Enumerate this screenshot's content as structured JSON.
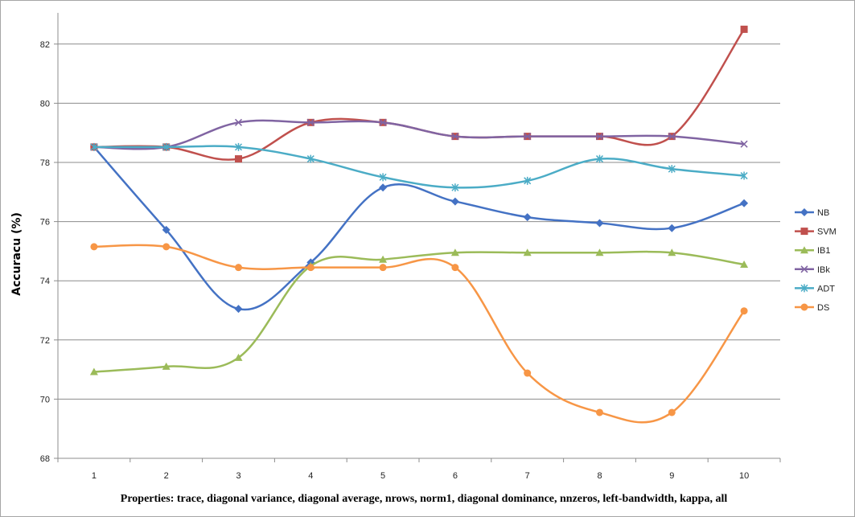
{
  "chart_data": {
    "type": "line",
    "title": "",
    "xlabel": "Properties: trace, diagonal variance, diagonal average, nrows, norm1, diagonal dominance, nnzeros, left-bandwidth, kappa, all",
    "ylabel": "Accuracu (%)",
    "categories": [
      "1",
      "2",
      "3",
      "4",
      "5",
      "6",
      "7",
      "8",
      "9",
      "10"
    ],
    "ylim": [
      68,
      83
    ],
    "yticks": [
      68,
      70,
      72,
      74,
      76,
      78,
      80,
      82
    ],
    "grid": "horizontal",
    "legend_position": "right",
    "series": [
      {
        "name": "NB",
        "color": "#4472c4",
        "marker": "diamond",
        "values": [
          78.52,
          75.72,
          73.05,
          74.62,
          77.15,
          76.68,
          76.15,
          75.95,
          75.78,
          76.62
        ]
      },
      {
        "name": "SVM",
        "color": "#c0504d",
        "marker": "square",
        "values": [
          78.52,
          78.52,
          78.12,
          79.35,
          79.35,
          78.88,
          78.88,
          78.88,
          78.88,
          82.5
        ]
      },
      {
        "name": "IB1",
        "color": "#9bbb59",
        "marker": "triangle",
        "values": [
          70.92,
          71.1,
          71.4,
          74.5,
          74.72,
          74.95,
          74.95,
          74.95,
          74.95,
          74.55
        ]
      },
      {
        "name": "IBk",
        "color": "#8064a2",
        "marker": "x",
        "values": [
          78.52,
          78.52,
          79.35,
          79.35,
          79.35,
          78.88,
          78.88,
          78.88,
          78.88,
          78.62
        ]
      },
      {
        "name": "ADT",
        "color": "#4bacc6",
        "marker": "star",
        "values": [
          78.52,
          78.52,
          78.52,
          78.12,
          77.5,
          77.15,
          77.38,
          78.12,
          77.78,
          77.55
        ]
      },
      {
        "name": "DS",
        "color": "#f79646",
        "marker": "circle",
        "values": [
          75.15,
          75.15,
          74.45,
          74.45,
          74.45,
          74.45,
          70.88,
          69.55,
          69.55,
          72.98
        ]
      }
    ]
  }
}
